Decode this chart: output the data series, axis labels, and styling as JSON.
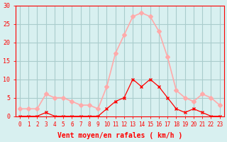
{
  "hours": [
    0,
    1,
    2,
    3,
    4,
    5,
    6,
    7,
    8,
    9,
    10,
    11,
    12,
    13,
    14,
    15,
    16,
    17,
    18,
    19,
    20,
    21,
    22,
    23
  ],
  "wind_avg": [
    0,
    0,
    0,
    1,
    0,
    0,
    0,
    0,
    0,
    0,
    2,
    4,
    5,
    10,
    8,
    10,
    8,
    5,
    2,
    1,
    2,
    1,
    0,
    0
  ],
  "wind_gust": [
    2,
    2,
    2,
    6,
    5,
    5,
    4,
    3,
    3,
    2,
    8,
    17,
    22,
    27,
    28,
    27,
    23,
    16,
    7,
    5,
    4,
    6,
    5,
    3
  ],
  "avg_color": "#ff0000",
  "gust_color": "#ffaaaa",
  "bg_color": "#d8f0f0",
  "grid_color": "#aacccc",
  "axis_color": "#ff0000",
  "title": "",
  "xlabel": "Vent moyen/en rafales ( km/h )",
  "ylim": [
    0,
    30
  ],
  "yticks": [
    0,
    5,
    10,
    15,
    20,
    25,
    30
  ],
  "xlim": [
    0,
    23
  ],
  "xticks": [
    0,
    1,
    2,
    3,
    4,
    5,
    6,
    7,
    8,
    9,
    10,
    11,
    12,
    13,
    14,
    15,
    16,
    17,
    18,
    19,
    20,
    21,
    22,
    23
  ]
}
